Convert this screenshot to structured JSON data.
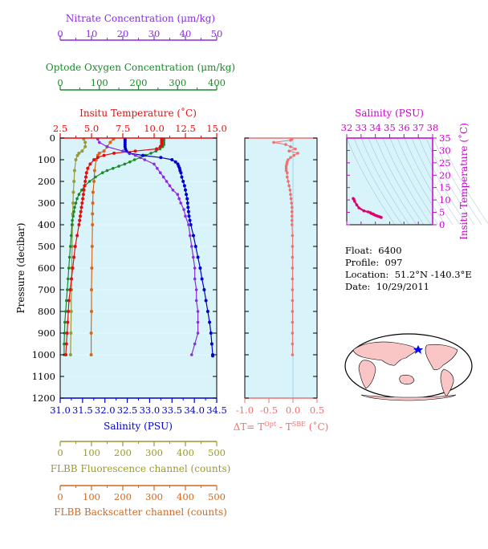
{
  "colors": {
    "nitrate": "#8a2be2",
    "oxygen": "#1a8a2a",
    "temperature": "#e01010",
    "salinity": "#0000cc",
    "salinity_ts": "#cc00cc",
    "fluorescence": "#9a9a30",
    "backscatter": "#d2691e",
    "delta": "#f07070",
    "panel_bg": "#d9f3fb",
    "ts_points": "#e0006e"
  },
  "info": {
    "float_label": "Float:",
    "float": "6400",
    "profile_label": "Profile:",
    "profile": "097",
    "location_label": "Location:",
    "location": "51.2°N  -140.3°E",
    "date_label": "Date:",
    "date": "10/29/2011"
  },
  "footer_text": "",
  "chart_data": [
    {
      "type": "line",
      "panel": "main",
      "ylabel": "Pressure (decibar)",
      "ylim": [
        1200,
        0
      ],
      "yticks": [
        0,
        100,
        200,
        300,
        400,
        500,
        600,
        700,
        800,
        900,
        1000,
        1100,
        1200
      ],
      "axes": {
        "nitrate": {
          "label": "Nitrate Concentration (μm/kg)",
          "range": [
            0,
            50
          ],
          "ticks": [
            0,
            10,
            20,
            30,
            40,
            50
          ]
        },
        "oxygen": {
          "label": "Optode Oxygen Concentration (μm/kg)",
          "range": [
            0,
            400
          ],
          "ticks": [
            0,
            100,
            200,
            300,
            400
          ]
        },
        "temperature": {
          "label": "Insitu Temperature (˚C)",
          "range": [
            2.5,
            15.0
          ],
          "ticks": [
            2.5,
            5.0,
            7.5,
            10.0,
            12.5,
            15.0
          ]
        },
        "salinity": {
          "label": "Salinity (PSU)",
          "range": [
            31.0,
            34.5
          ],
          "ticks": [
            31.0,
            31.5,
            32.0,
            32.5,
            33.0,
            33.5,
            34.0,
            34.5
          ]
        },
        "fluorescence": {
          "label": "FLBB Fluorescence channel (counts)",
          "range": [
            0,
            500
          ],
          "ticks": [
            0,
            100,
            200,
            300,
            400,
            500
          ]
        },
        "backscatter": {
          "label": "FLBB Backscatter channel (counts)",
          "range": [
            0,
            500
          ],
          "ticks": [
            0,
            100,
            200,
            300,
            400,
            500
          ]
        }
      },
      "series": [
        {
          "key": "salinity",
          "p": [
            5,
            10,
            20,
            30,
            40,
            50,
            60,
            70,
            80,
            90,
            100,
            110,
            120,
            130,
            140,
            150,
            160,
            180,
            200,
            220,
            240,
            260,
            280,
            300,
            320,
            340,
            360,
            380,
            400,
            450,
            500,
            550,
            600,
            650,
            700,
            750,
            800,
            850,
            900,
            950,
            1000,
            1005
          ],
          "v": [
            32.45,
            32.45,
            32.45,
            32.45,
            32.45,
            32.46,
            32.48,
            32.55,
            32.85,
            33.25,
            33.5,
            33.58,
            33.63,
            33.65,
            33.67,
            33.68,
            33.7,
            33.72,
            33.75,
            33.78,
            33.8,
            33.82,
            33.84,
            33.85,
            33.86,
            33.87,
            33.88,
            33.9,
            33.92,
            33.98,
            34.03,
            34.08,
            34.13,
            34.17,
            34.22,
            34.26,
            34.3,
            34.34,
            34.37,
            34.39,
            34.41,
            34.41
          ]
        },
        {
          "key": "temperature",
          "p": [
            5,
            10,
            20,
            30,
            40,
            50,
            60,
            70,
            80,
            90,
            100,
            120,
            140,
            160,
            180,
            200,
            220,
            240,
            260,
            280,
            300,
            320,
            340,
            360,
            380,
            400,
            450,
            500,
            550,
            600,
            650,
            700,
            750,
            800,
            850,
            900,
            950,
            1000
          ],
          "v": [
            10.6,
            10.6,
            10.6,
            10.6,
            10.5,
            10.2,
            8.5,
            6.8,
            6.0,
            5.5,
            5.2,
            4.9,
            4.7,
            4.6,
            4.55,
            4.5,
            4.45,
            4.4,
            4.35,
            4.3,
            4.25,
            4.2,
            4.15,
            4.1,
            4.05,
            4.0,
            3.85,
            3.7,
            3.6,
            3.5,
            3.4,
            3.3,
            3.2,
            3.15,
            3.1,
            3.05,
            3.0,
            2.95
          ]
        },
        {
          "key": "oxygen",
          "p": [
            5,
            10,
            20,
            30,
            40,
            50,
            60,
            70,
            80,
            90,
            100,
            110,
            120,
            130,
            140,
            150,
            160,
            180,
            200,
            220,
            240,
            260,
            280,
            300,
            320,
            340,
            360,
            380,
            400,
            450,
            500,
            550,
            600,
            650,
            700,
            750,
            800,
            850,
            900,
            950,
            1000
          ],
          "v": [
            265,
            265,
            265,
            265,
            262,
            255,
            245,
            232,
            218,
            205,
            190,
            178,
            165,
            150,
            135,
            120,
            108,
            90,
            75,
            63,
            55,
            48,
            43,
            40,
            37,
            35,
            33,
            31,
            30,
            28,
            26,
            24,
            22,
            20,
            18,
            16,
            14,
            12,
            11,
            10,
            10
          ]
        },
        {
          "key": "nitrate",
          "p": [
            5,
            20,
            40,
            60,
            80,
            100,
            120,
            140,
            160,
            180,
            200,
            220,
            240,
            260,
            280,
            300,
            330,
            360,
            400,
            450,
            500,
            550,
            600,
            650,
            700,
            750,
            800,
            850,
            900,
            950,
            1000
          ],
          "v": [
            12,
            12.5,
            15,
            20,
            24,
            27,
            30,
            31,
            32,
            33,
            34,
            35,
            36,
            37.5,
            38,
            38.5,
            39.5,
            40,
            41,
            41.5,
            42,
            42.5,
            43,
            43,
            43.5,
            43.5,
            44,
            44,
            44,
            43,
            42
          ]
        },
        {
          "key": "fluorescence",
          "p": [
            5,
            20,
            40,
            60,
            70,
            80,
            100,
            150,
            200,
            250,
            300,
            350,
            400,
            500,
            600,
            700,
            800,
            900,
            1000
          ],
          "v": [
            75,
            80,
            80,
            70,
            60,
            55,
            50,
            46,
            44,
            42,
            41,
            40,
            39,
            38,
            37,
            36,
            35,
            34,
            33
          ]
        },
        {
          "key": "backscatter",
          "p": [
            5,
            20,
            40,
            60,
            70,
            80,
            100,
            150,
            200,
            250,
            300,
            350,
            400,
            500,
            600,
            700,
            800,
            900,
            1000
          ],
          "v": [
            170,
            160,
            150,
            140,
            125,
            120,
            115,
            110,
            108,
            105,
            104,
            103,
            103,
            102,
            101,
            100,
            100,
            99,
            99
          ]
        }
      ]
    },
    {
      "type": "scatter",
      "panel": "delta_t",
      "xlabel": "ΔT= T",
      "xlabel_sup1": "Opt",
      "xlabel_mid": " - T",
      "xlabel_sup2": "SBE",
      "xlabel_end": " (˚C)",
      "xlim": [
        -1.0,
        0.5
      ],
      "xticks": [
        -1.0,
        -0.5,
        0.0,
        0.5
      ],
      "ylim": [
        1200,
        0
      ],
      "p": [
        5,
        10,
        20,
        30,
        40,
        50,
        60,
        70,
        80,
        90,
        100,
        110,
        120,
        130,
        140,
        150,
        160,
        180,
        200,
        220,
        240,
        260,
        280,
        300,
        320,
        340,
        360,
        380,
        400,
        450,
        500,
        550,
        600,
        650,
        700,
        750,
        800,
        850,
        900,
        950,
        1000
      ],
      "dt": [
        -0.02,
        -0.05,
        -0.4,
        -0.15,
        -0.05,
        0.05,
        -0.08,
        0.1,
        0.02,
        -0.05,
        -0.1,
        -0.12,
        -0.13,
        -0.14,
        -0.14,
        -0.14,
        -0.12,
        -0.12,
        -0.1,
        -0.08,
        -0.06,
        -0.05,
        -0.04,
        -0.03,
        -0.02,
        -0.02,
        -0.02,
        -0.02,
        -0.02,
        -0.01,
        -0.01,
        -0.01,
        -0.01,
        -0.01,
        -0.01,
        -0.01,
        -0.01,
        -0.01,
        -0.01,
        -0.01,
        -0.01
      ]
    },
    {
      "type": "scatter",
      "panel": "ts",
      "xlabel": "Salinity (PSU)",
      "ylabel": "Insitu Temperature (˚C)",
      "xlim": [
        32,
        38
      ],
      "xticks": [
        32,
        33,
        34,
        35,
        36,
        37,
        38
      ],
      "ylim": [
        0,
        35
      ],
      "yticks": [
        0,
        5,
        10,
        15,
        20,
        25,
        30,
        35
      ],
      "points": [
        [
          32.45,
          10.6
        ],
        [
          32.5,
          10.3
        ],
        [
          32.55,
          9.5
        ],
        [
          32.7,
          8.0
        ],
        [
          32.85,
          6.8
        ],
        [
          33.2,
          5.6
        ],
        [
          33.5,
          5.2
        ],
        [
          33.65,
          4.9
        ],
        [
          33.7,
          4.6
        ],
        [
          33.8,
          4.4
        ],
        [
          33.85,
          4.3
        ],
        [
          33.9,
          4.1
        ],
        [
          34.0,
          3.8
        ],
        [
          34.1,
          3.6
        ],
        [
          34.2,
          3.4
        ],
        [
          34.3,
          3.2
        ],
        [
          34.37,
          3.05
        ],
        [
          34.41,
          2.95
        ]
      ]
    }
  ]
}
